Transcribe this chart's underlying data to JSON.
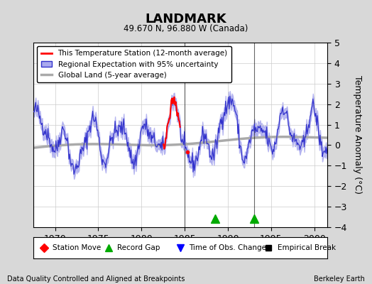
{
  "title": "LANDMARK",
  "subtitle": "49.670 N, 96.880 W (Canada)",
  "ylabel": "Temperature Anomaly (°C)",
  "xlabel_note": "Data Quality Controlled and Aligned at Breakpoints",
  "credit": "Berkeley Earth",
  "xlim": [
    1967.5,
    2001.5
  ],
  "ylim": [
    -4,
    5
  ],
  "yticks": [
    -4,
    -3,
    -2,
    -1,
    0,
    1,
    2,
    3,
    4,
    5
  ],
  "xticks": [
    1970,
    1975,
    1980,
    1985,
    1990,
    1995,
    2000
  ],
  "bg_color": "#d8d8d8",
  "plot_bg_color": "#ffffff",
  "regional_color": "#3333cc",
  "regional_fill_color": "#aaaaee",
  "station_color": "#ff0000",
  "global_color": "#aaaaaa",
  "marker_green": "#00aa00",
  "marker_blue": "#0000cc",
  "marker_red": "#cc0000",
  "marker_black": "#000000",
  "green_triangle_years": [
    1988.5,
    1993.0
  ],
  "vertical_line_years": [
    1985.0,
    1993.0
  ]
}
